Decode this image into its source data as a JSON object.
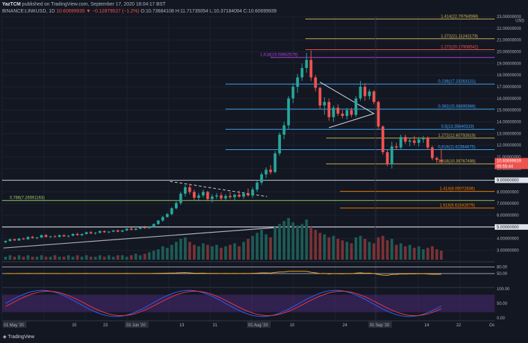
{
  "header": {
    "author": "YazTCM",
    "published_text": "published on TradingView.com, September 17, 2020 18:04:17 BST",
    "symbol": "BINANCE:LINKUSD, 1D",
    "last": "10.60699939",
    "change": "▼ −0.12879527 (−1.2%)",
    "o": "O:10.73684108",
    "h": "H:11.71735054",
    "l": "L:10.37184094",
    "c": "C:10.60699939"
  },
  "footer": {
    "brand": "TradingView"
  },
  "colors": {
    "bg": "#131722",
    "up": "#26a69a",
    "down": "#ef5350",
    "vol_up": "#1d5c55",
    "vol_down": "#7a3235",
    "rsi": "#f5a623",
    "stoch_k": "#2962ff",
    "stoch_d": "#f23645",
    "stoch_band": "#4a2a72"
  },
  "chart_data": {
    "type": "candlestick",
    "title": "BINANCE:LINKUSD, 1D",
    "ylabel": "USD",
    "ylim": [
      2.2,
      23.0
    ],
    "y_ticks": [
      "23.00000000",
      "22.00000000",
      "21.00000000",
      "20.00000000",
      "19.00000000",
      "18.00000000",
      "17.00000000",
      "16.00000000",
      "15.00000000",
      "14.00000000",
      "13.00000000",
      "12.00000000",
      "11.00000000",
      "10.00000000",
      "9.00000000",
      "8.00000000",
      "7.00000000",
      "6.00000000",
      "5.00000000",
      "4.00000000",
      "3.00000000"
    ],
    "x_ticks": [
      "01 May '20",
      "15",
      "23",
      "01 Jun '20",
      "13",
      "21",
      "01 Aug '20",
      "10",
      "24",
      "01 Sep '20",
      "14",
      "22",
      "Oc"
    ],
    "price_tags": {
      "last": "10.60699939",
      "countdown": "05:55:44",
      "level_9": "9.00000000",
      "level_5": "5.00000000"
    },
    "levels": [
      {
        "label": "1.414(22.79784568)",
        "value": 22.8,
        "color": "#c9b458"
      },
      {
        "label": "1.272(21.11242179)",
        "value": 21.11,
        "color": "#c9b458"
      },
      {
        "label": "1.272(20.17908542)",
        "value": 20.18,
        "color": "#ef5350"
      },
      {
        "label": "1.618(19.50882579)",
        "value": 19.51,
        "color": "#b040e0"
      },
      {
        "label": "0.236(17.23263121)",
        "value": 17.23,
        "color": "#42a5f5"
      },
      {
        "label": "0.382(15.08895966)",
        "value": 15.09,
        "color": "#42a5f5"
      },
      {
        "label": "0.5(13.35640319)",
        "value": 13.36,
        "color": "#42a5f5"
      },
      {
        "label": "1.272(12.60792619)",
        "value": 12.61,
        "color": "#c9b458"
      },
      {
        "label": "0.618(11.62384675)",
        "value": 11.62,
        "color": "#42a5f5"
      },
      {
        "label": "1.618(10.39767498)",
        "value": 10.4,
        "color": "#c9b458"
      },
      {
        "label": "1.414(8.05072836)",
        "value": 8.05,
        "color": "#f57c00"
      },
      {
        "label": "0.786(7.26591163)",
        "value": 7.27,
        "color": "#9ccc65"
      },
      {
        "label": "1.618(6.61642679)",
        "value": 6.62,
        "color": "#f57c00"
      }
    ],
    "candles": [
      [
        3.7,
        3.85,
        3.6,
        3.8
      ],
      [
        3.8,
        4.0,
        3.75,
        3.95
      ],
      [
        3.95,
        4.0,
        3.8,
        3.85
      ],
      [
        3.85,
        4.05,
        3.8,
        4.0
      ],
      [
        4.0,
        4.1,
        3.9,
        3.95
      ],
      [
        3.95,
        4.2,
        3.9,
        4.15
      ],
      [
        4.15,
        4.25,
        4.0,
        4.05
      ],
      [
        4.05,
        4.15,
        3.95,
        4.1
      ],
      [
        4.1,
        4.35,
        4.05,
        4.3
      ],
      [
        4.3,
        4.4,
        4.1,
        4.15
      ],
      [
        4.15,
        4.25,
        4.05,
        4.2
      ],
      [
        4.2,
        4.3,
        4.1,
        4.15
      ],
      [
        4.15,
        4.35,
        4.1,
        4.3
      ],
      [
        4.3,
        4.35,
        4.15,
        4.2
      ],
      [
        4.2,
        4.3,
        4.1,
        4.25
      ],
      [
        4.25,
        4.45,
        4.2,
        4.4
      ],
      [
        4.4,
        4.5,
        4.25,
        4.3
      ],
      [
        4.3,
        4.45,
        4.2,
        4.4
      ],
      [
        4.4,
        4.6,
        4.35,
        4.55
      ],
      [
        4.55,
        4.65,
        4.4,
        4.45
      ],
      [
        4.45,
        4.55,
        4.35,
        4.5
      ],
      [
        4.5,
        4.7,
        4.45,
        4.65
      ],
      [
        4.65,
        4.7,
        4.5,
        4.55
      ],
      [
        4.55,
        4.65,
        4.45,
        4.6
      ],
      [
        4.6,
        4.75,
        4.55,
        4.7
      ],
      [
        4.7,
        4.8,
        4.55,
        4.6
      ],
      [
        4.6,
        4.75,
        4.55,
        4.7
      ],
      [
        4.7,
        4.9,
        4.65,
        4.85
      ],
      [
        4.85,
        4.95,
        4.7,
        4.75
      ],
      [
        4.75,
        4.9,
        4.7,
        4.85
      ],
      [
        4.85,
        5.0,
        4.8,
        4.95
      ],
      [
        4.95,
        5.1,
        4.85,
        4.9
      ],
      [
        4.9,
        5.05,
        4.85,
        5.0
      ],
      [
        5.0,
        5.3,
        4.95,
        5.25
      ],
      [
        5.25,
        5.6,
        5.2,
        5.55
      ],
      [
        5.55,
        5.95,
        5.45,
        5.85
      ],
      [
        5.85,
        6.2,
        5.8,
        6.1
      ],
      [
        6.1,
        6.7,
        6.0,
        6.6
      ],
      [
        6.6,
        7.2,
        6.5,
        7.05
      ],
      [
        7.05,
        8.0,
        6.9,
        7.85
      ],
      [
        7.85,
        8.6,
        7.6,
        8.4
      ],
      [
        8.4,
        8.7,
        7.8,
        8.0
      ],
      [
        8.0,
        8.2,
        7.3,
        7.5
      ],
      [
        7.5,
        7.9,
        7.2,
        7.7
      ],
      [
        7.7,
        8.2,
        7.5,
        8.0
      ],
      [
        8.0,
        8.1,
        7.2,
        7.4
      ],
      [
        7.4,
        7.8,
        7.1,
        7.6
      ],
      [
        7.6,
        7.9,
        7.4,
        7.7
      ],
      [
        7.7,
        7.95,
        7.3,
        7.45
      ],
      [
        7.45,
        7.8,
        7.2,
        7.65
      ],
      [
        7.65,
        8.0,
        7.4,
        7.55
      ],
      [
        7.55,
        7.85,
        7.3,
        7.75
      ],
      [
        7.75,
        8.1,
        7.5,
        7.6
      ],
      [
        7.6,
        8.0,
        7.4,
        7.85
      ],
      [
        7.85,
        8.3,
        7.6,
        7.7
      ],
      [
        7.7,
        8.4,
        7.5,
        8.2
      ],
      [
        8.2,
        9.0,
        8.0,
        8.8
      ],
      [
        8.8,
        9.7,
        8.6,
        9.5
      ],
      [
        9.5,
        10.1,
        9.2,
        9.9
      ],
      [
        9.9,
        10.3,
        9.5,
        9.7
      ],
      [
        9.7,
        11.5,
        9.6,
        11.3
      ],
      [
        11.3,
        13.1,
        11.1,
        12.9
      ],
      [
        12.9,
        14.0,
        12.5,
        13.7
      ],
      [
        13.7,
        16.2,
        13.4,
        16.0
      ],
      [
        16.0,
        17.3,
        15.6,
        17.0
      ],
      [
        17.0,
        18.1,
        16.5,
        17.8
      ],
      [
        17.8,
        19.0,
        17.5,
        18.6
      ],
      [
        18.6,
        19.9,
        18.2,
        19.3
      ],
      [
        19.3,
        20.1,
        17.5,
        17.8
      ],
      [
        17.8,
        18.0,
        16.6,
        16.9
      ],
      [
        16.9,
        17.0,
        15.1,
        15.4
      ],
      [
        15.4,
        16.1,
        14.6,
        15.7
      ],
      [
        15.7,
        16.0,
        14.1,
        14.4
      ],
      [
        14.4,
        15.4,
        14.0,
        15.2
      ],
      [
        15.2,
        15.5,
        14.5,
        14.7
      ],
      [
        14.7,
        15.0,
        14.3,
        14.5
      ],
      [
        14.5,
        15.2,
        14.2,
        15.0
      ],
      [
        15.0,
        15.2,
        14.4,
        14.6
      ],
      [
        14.6,
        16.2,
        14.4,
        16.0
      ],
      [
        16.0,
        17.5,
        15.8,
        17.0
      ],
      [
        17.0,
        17.3,
        15.8,
        16.2
      ],
      [
        16.2,
        16.8,
        15.9,
        16.6
      ],
      [
        16.6,
        16.7,
        15.5,
        15.7
      ],
      [
        15.7,
        15.8,
        13.4,
        13.6
      ],
      [
        13.6,
        13.7,
        11.2,
        11.4
      ],
      [
        11.4,
        11.6,
        10.2,
        10.4
      ],
      [
        10.4,
        12.3,
        10.0,
        11.9
      ],
      [
        11.9,
        12.2,
        11.6,
        11.8
      ],
      [
        11.8,
        12.9,
        11.6,
        12.7
      ],
      [
        12.7,
        12.9,
        12.1,
        12.3
      ],
      [
        12.3,
        12.6,
        11.9,
        12.4
      ],
      [
        12.4,
        12.8,
        12.0,
        12.2
      ],
      [
        12.2,
        12.7,
        11.9,
        12.5
      ],
      [
        12.5,
        12.8,
        12.2,
        12.6
      ],
      [
        12.6,
        12.75,
        11.6,
        11.8
      ],
      [
        11.8,
        11.95,
        10.7,
        10.9
      ],
      [
        10.9,
        11.0,
        10.5,
        10.74
      ],
      [
        10.74,
        11.72,
        10.37,
        10.61
      ]
    ],
    "volume": [
      2,
      3,
      2,
      3,
      2,
      3,
      2,
      2,
      3,
      2,
      2,
      3,
      2,
      2,
      3,
      2,
      3,
      2,
      3,
      2,
      2,
      3,
      2,
      3,
      2,
      3,
      3,
      2,
      3,
      4,
      3,
      4,
      5,
      6,
      7,
      9,
      8,
      10,
      12,
      14,
      15,
      12,
      10,
      9,
      11,
      10,
      9,
      10,
      8,
      9,
      10,
      11,
      9,
      12,
      14,
      16,
      18,
      20,
      17,
      15,
      22,
      24,
      26,
      28,
      25,
      23,
      24,
      27,
      22,
      20,
      18,
      17,
      15,
      16,
      14,
      13,
      12,
      11,
      15,
      16,
      14,
      12,
      11,
      15,
      16,
      13,
      14,
      10,
      11,
      9,
      10,
      8,
      9,
      7,
      8,
      9,
      7,
      6
    ],
    "rsi": {
      "ylim": [
        0,
        100
      ],
      "ticks": [
        "80.00",
        "50.00"
      ]
    },
    "stoch_rsi": {
      "ylim": [
        0,
        100
      ],
      "ticks": [
        "100.00",
        "50.00",
        "0.00"
      ]
    }
  }
}
